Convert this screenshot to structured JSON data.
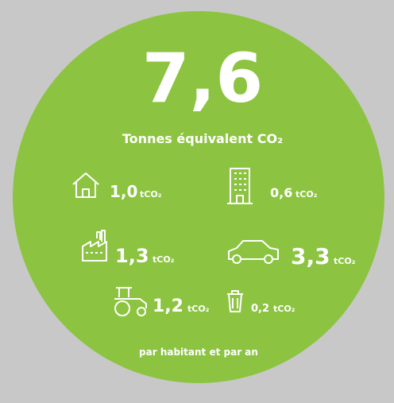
{
  "headline": {
    "value": "7,6",
    "unit": "Tonnes équivalent CO₂"
  },
  "items": [
    {
      "value": "1,0",
      "unit": "tCO₂"
    },
    {
      "value": "0,6",
      "unit": "tCO₂"
    },
    {
      "value": "1,3",
      "unit": "tCO₂"
    },
    {
      "value": "3,3",
      "unit": "tCO₂"
    },
    {
      "value": "1,2",
      "unit": "tCO₂"
    },
    {
      "value": "0,2",
      "unit": "tCO₂"
    }
  ],
  "footer": "par habitant et par an"
}
